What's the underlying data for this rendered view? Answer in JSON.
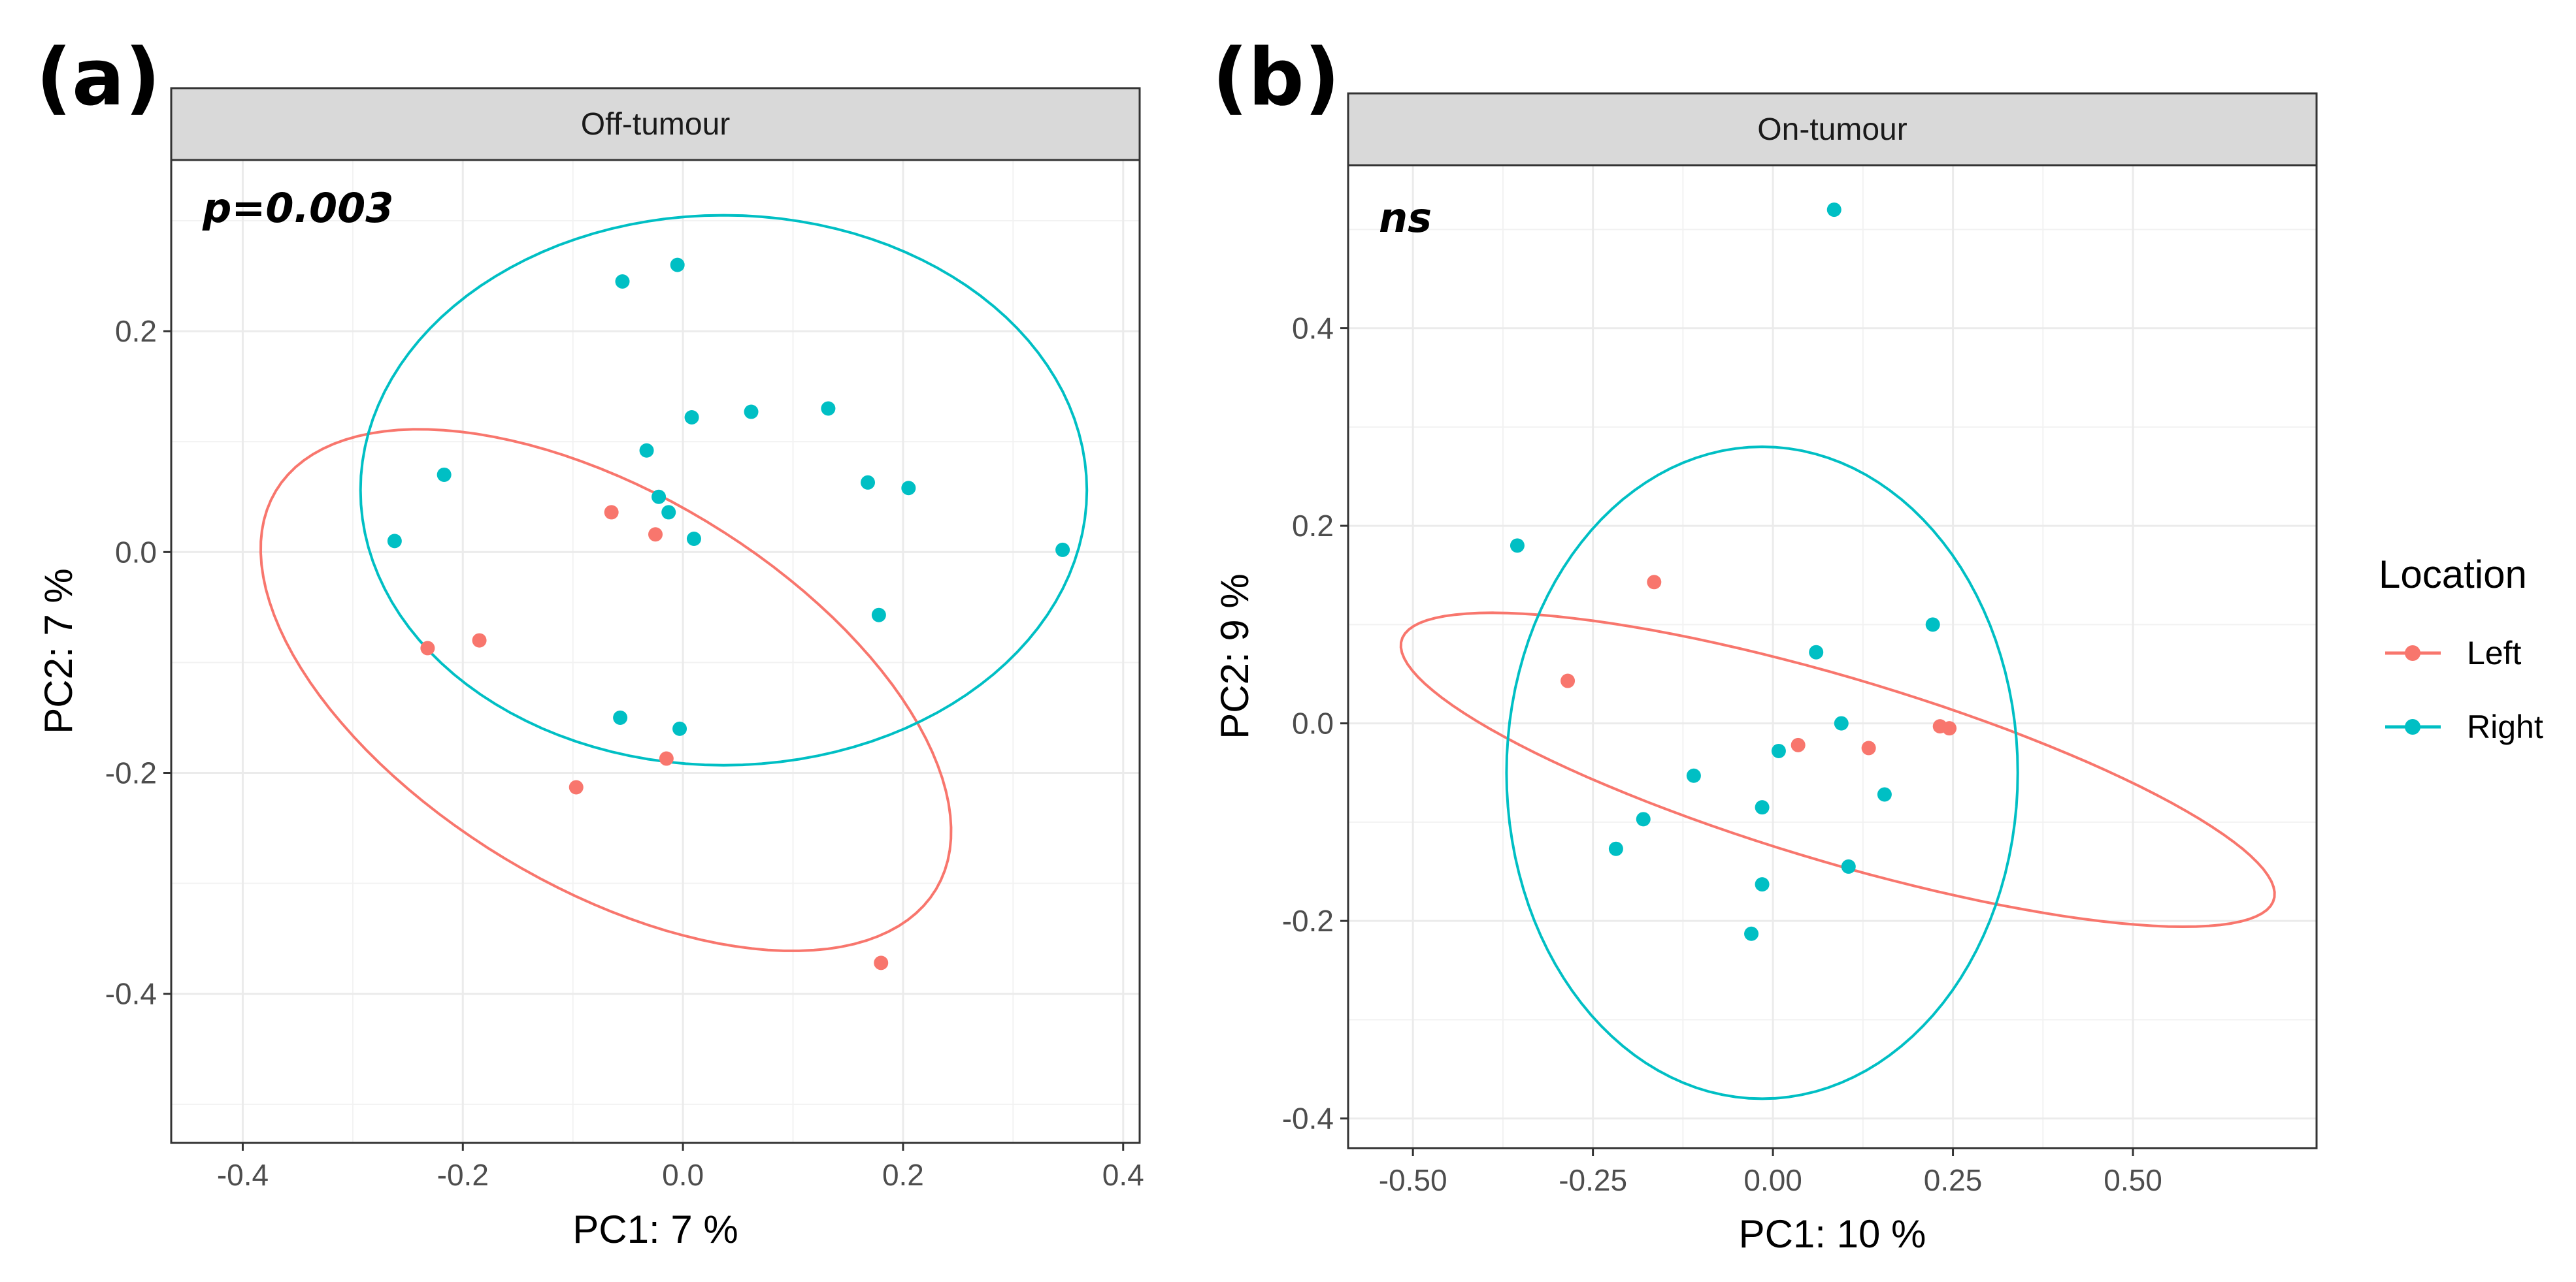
{
  "colors": {
    "left": "#f8766d",
    "right": "#00bfc4",
    "grid": "#ebebeb",
    "strip": "#d9d9d9",
    "border": "#333333"
  },
  "legend": {
    "title": "Location",
    "items": [
      {
        "label": "Left",
        "color": "#f8766d"
      },
      {
        "label": "Right",
        "color": "#00bfc4"
      }
    ]
  },
  "chart_data": [
    {
      "type": "scatter",
      "panel_label": "(a)",
      "strip_title": "Off-tumour",
      "annotation": "p=0.003",
      "xlabel": "PC1:  7 %",
      "ylabel": "PC2:  7 %",
      "xlim": [
        -0.465,
        0.415
      ],
      "ylim": [
        -0.535,
        0.355
      ],
      "xticks": [
        -0.4,
        -0.2,
        0.0,
        0.2,
        0.4
      ],
      "xtick_labels": [
        "-0.4",
        "-0.2",
        "0.0",
        "0.2",
        "0.4"
      ],
      "yticks": [
        -0.4,
        -0.2,
        0.0,
        0.2
      ],
      "ytick_labels": [
        "-0.4",
        "-0.2",
        "0.0",
        "0.2"
      ],
      "series": [
        {
          "name": "Left",
          "points": [
            [
              -0.065,
              0.036
            ],
            [
              -0.025,
              0.016
            ],
            [
              -0.232,
              -0.087
            ],
            [
              -0.185,
              -0.08
            ],
            [
              -0.015,
              -0.187
            ],
            [
              -0.097,
              -0.213
            ],
            [
              0.18,
              -0.372
            ]
          ],
          "ellipse": {
            "center": [
              -0.07,
              -0.125
            ],
            "rx": 0.35,
            "ry": 0.178,
            "angle_deg": -31
          }
        },
        {
          "name": "Right",
          "points": [
            [
              -0.005,
              0.26
            ],
            [
              -0.055,
              0.245
            ],
            [
              0.132,
              0.13
            ],
            [
              0.062,
              0.127
            ],
            [
              0.008,
              0.122
            ],
            [
              -0.033,
              0.092
            ],
            [
              0.168,
              0.063
            ],
            [
              0.205,
              0.058
            ],
            [
              -0.217,
              0.07
            ],
            [
              -0.022,
              0.05
            ],
            [
              -0.013,
              0.036
            ],
            [
              0.01,
              0.012
            ],
            [
              -0.262,
              0.01
            ],
            [
              0.345,
              0.002
            ],
            [
              0.178,
              -0.057
            ],
            [
              -0.057,
              -0.15
            ],
            [
              -0.003,
              -0.16
            ]
          ],
          "ellipse": {
            "center": [
              0.037,
              0.056
            ],
            "rx": 0.33,
            "ry": 0.249,
            "angle_deg": 0
          }
        }
      ]
    },
    {
      "type": "scatter",
      "panel_label": "(b)",
      "strip_title": "On-tumour",
      "annotation": "ns",
      "xlabel": "PC1:  10 %",
      "ylabel": "PC2:  9 %",
      "xlim": [
        -0.59,
        0.755
      ],
      "ylim": [
        -0.43,
        0.565
      ],
      "xticks": [
        -0.5,
        -0.25,
        0.0,
        0.25,
        0.5
      ],
      "xtick_labels": [
        "-0.50",
        "-0.25",
        "0.00",
        "0.25",
        "0.50"
      ],
      "yticks": [
        -0.4,
        -0.2,
        0.0,
        0.2,
        0.4
      ],
      "ytick_labels": [
        "-0.4",
        "-0.2",
        "0.0",
        "0.2",
        "0.4"
      ],
      "series": [
        {
          "name": "Left",
          "points": [
            [
              -0.165,
              0.143
            ],
            [
              -0.285,
              0.043
            ],
            [
              0.035,
              -0.022
            ],
            [
              0.133,
              -0.025
            ],
            [
              0.232,
              -0.003
            ],
            [
              0.245,
              -0.005
            ]
          ],
          "ellipse": {
            "center": [
              0.09,
              -0.047
            ],
            "rx": 0.62,
            "ry": 0.095,
            "angle_deg": -12
          }
        },
        {
          "name": "Right",
          "points": [
            [
              0.085,
              0.52
            ],
            [
              -0.355,
              0.18
            ],
            [
              0.222,
              0.1
            ],
            [
              0.06,
              0.072
            ],
            [
              0.095,
              0.0
            ],
            [
              0.008,
              -0.028
            ],
            [
              -0.11,
              -0.053
            ],
            [
              0.155,
              -0.072
            ],
            [
              -0.015,
              -0.085
            ],
            [
              -0.18,
              -0.097
            ],
            [
              0.105,
              -0.145
            ],
            [
              -0.218,
              -0.127
            ],
            [
              -0.015,
              -0.163
            ],
            [
              -0.03,
              -0.213
            ]
          ],
          "ellipse": {
            "center": [
              -0.015,
              -0.05
            ],
            "rx": 0.355,
            "ry": 0.33,
            "angle_deg": 0
          }
        }
      ]
    }
  ]
}
